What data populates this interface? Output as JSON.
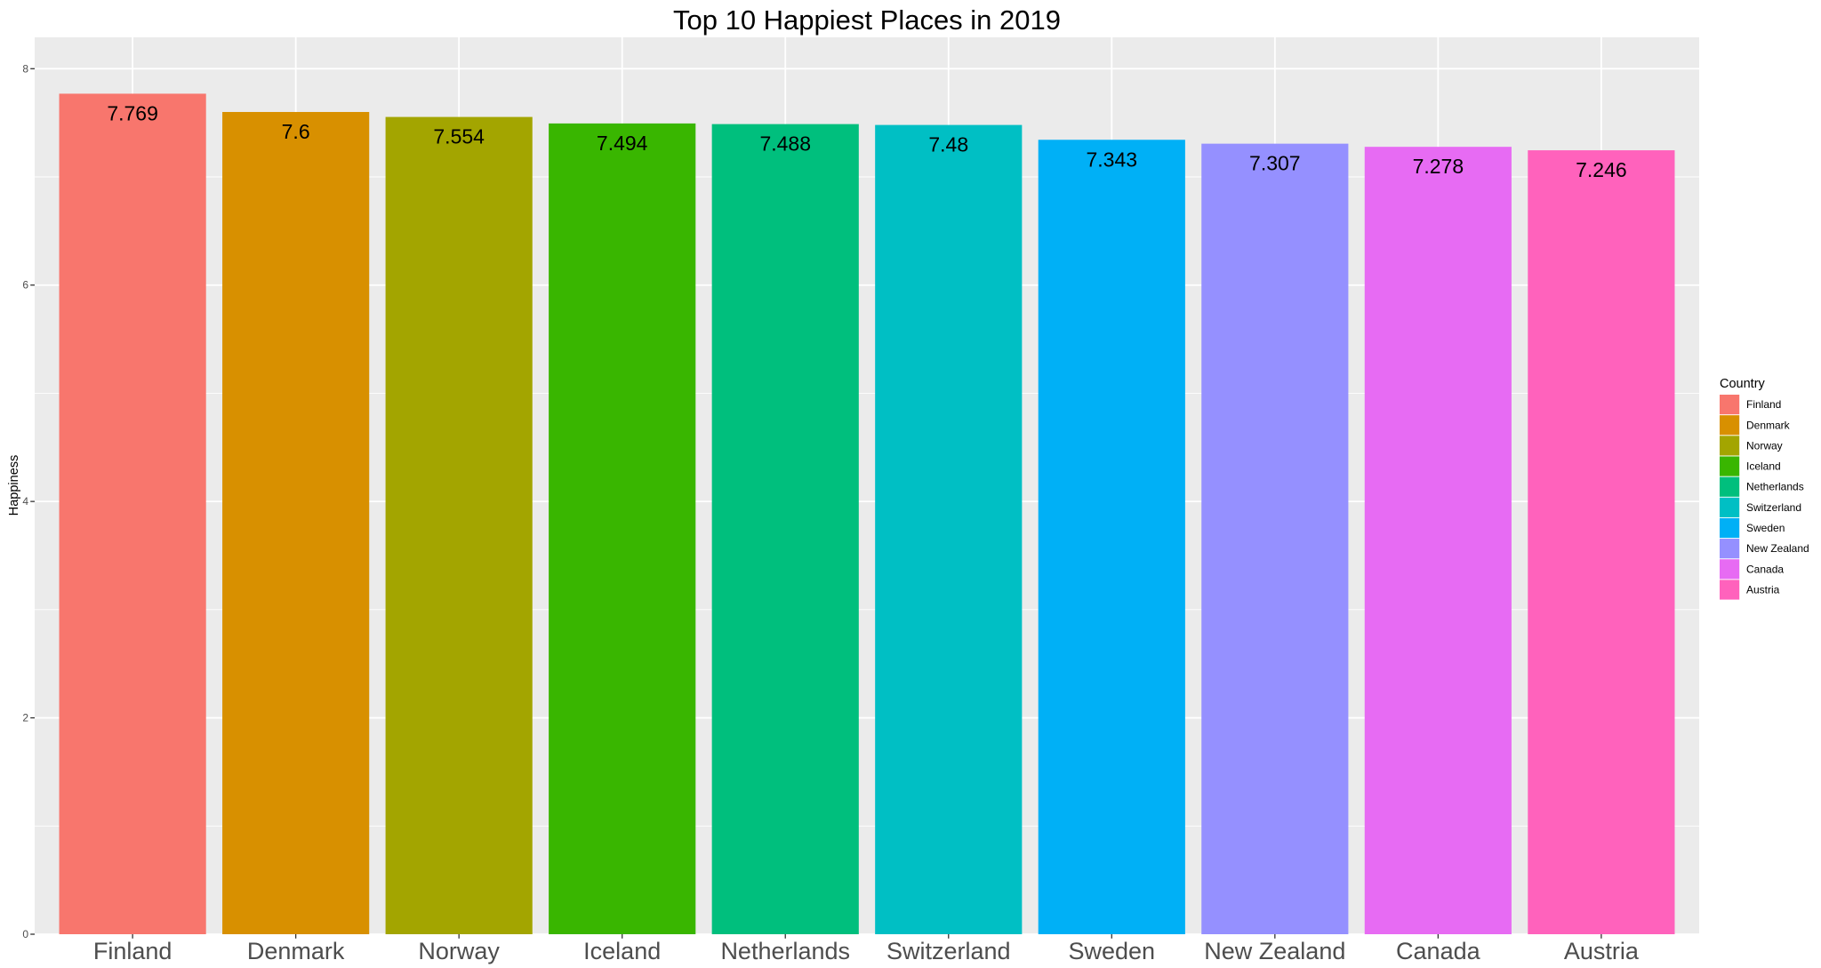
{
  "chart_data": {
    "type": "bar",
    "title": "Top 10 Happiest Places in 2019",
    "xlabel": "",
    "ylabel": "Happiness",
    "categories": [
      "Finland",
      "Denmark",
      "Norway",
      "Iceland",
      "Netherlands",
      "Switzerland",
      "Sweden",
      "New Zealand",
      "Canada",
      "Austria"
    ],
    "values": [
      7.769,
      7.6,
      7.554,
      7.494,
      7.488,
      7.48,
      7.343,
      7.307,
      7.278,
      7.246
    ],
    "colors": [
      "#F8766D",
      "#D89000",
      "#A3A500",
      "#39B600",
      "#00BF7D",
      "#00BFC4",
      "#00B0F6",
      "#9590FF",
      "#E76BF3",
      "#FF62BC"
    ],
    "ylim": [
      0,
      8.29
    ],
    "yticks": [
      0,
      2,
      4,
      6,
      8
    ],
    "grid": true,
    "legend": {
      "title": "Country",
      "position": "right"
    }
  },
  "colors": {
    "panel_background": "#EBEBEB",
    "grid": "#FFFFFF",
    "tick": "#333333"
  }
}
